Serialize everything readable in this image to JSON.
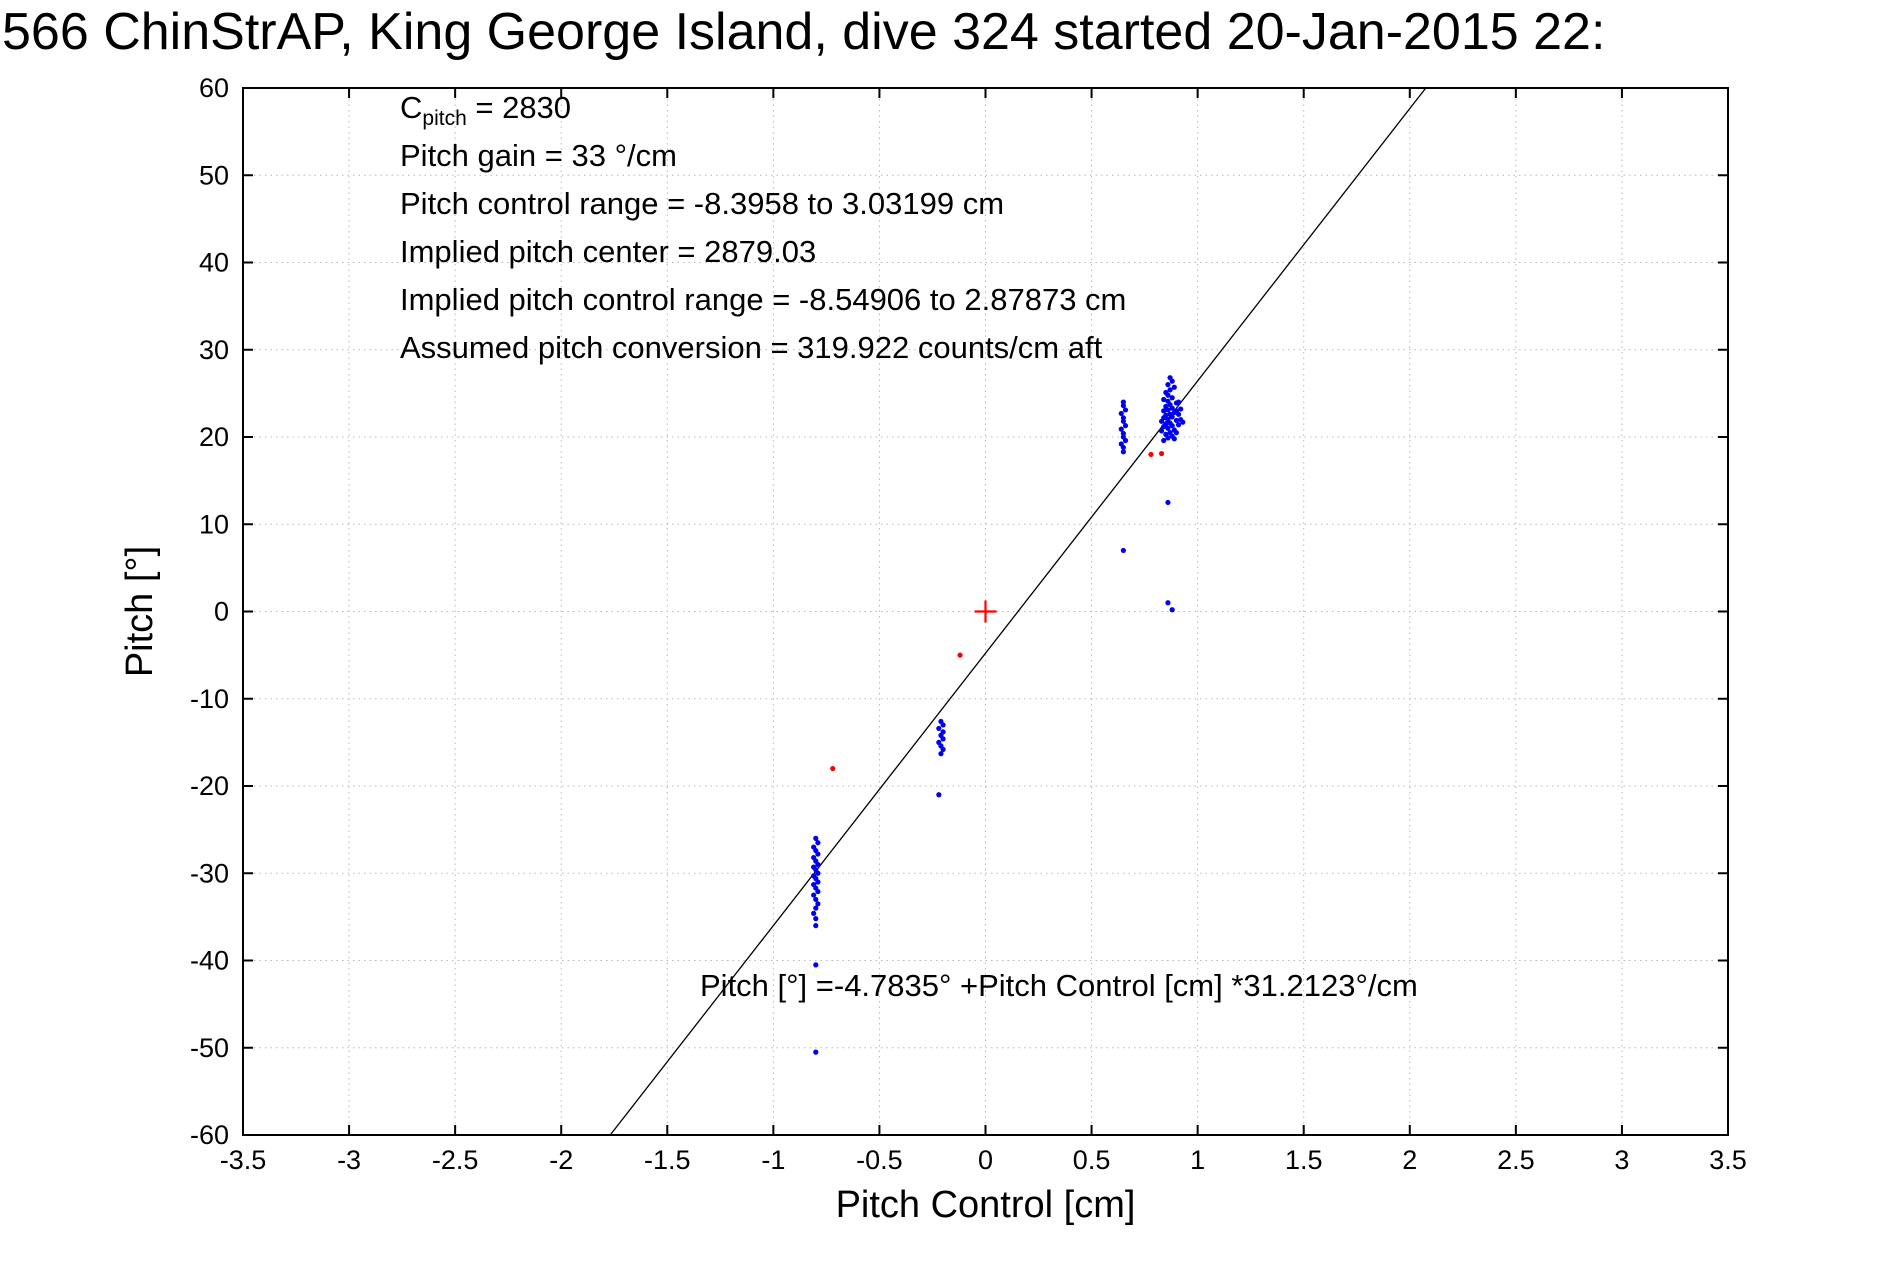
{
  "title": "566 ChinStrAP, King George Island, dive 324 started 20-Jan-2015 22:",
  "annotations": {
    "c_label": "C",
    "c_sub": "pitch",
    "c_value": " = 2830",
    "lines": [
      "Pitch gain = 33 °/cm",
      "Pitch control range = -8.3958 to 3.03199 cm",
      "Implied pitch center = 2879.03",
      "Implied pitch control range = -8.54906 to 2.87873 cm",
      "Assumed pitch conversion = 319.922 counts/cm aft"
    ],
    "fit_equation": "Pitch [°] =-4.7835° +Pitch Control [cm] *31.2123°/cm"
  },
  "chart_data": {
    "type": "scatter",
    "title": "566 ChinStrAP, King George Island, dive 324 started 20-Jan-2015 22:",
    "xlabel": "Pitch Control [cm]",
    "ylabel": "Pitch [°]",
    "xlim": [
      -3.5,
      3.5
    ],
    "ylim": [
      -60,
      60
    ],
    "grid": true,
    "legend": "none",
    "x_ticks": [
      -3.5,
      -3,
      -2.5,
      -2,
      -1.5,
      -1,
      -0.5,
      0,
      0.5,
      1,
      1.5,
      2,
      2.5,
      3,
      3.5
    ],
    "x_tick_labels": [
      "-3.5",
      "-3",
      "-2.5",
      "-2",
      "-1.5",
      "-1",
      "-0.5",
      "0",
      "0.5",
      "1",
      "1.5",
      "2",
      "2.5",
      "3",
      "3.5"
    ],
    "y_ticks": [
      -60,
      -50,
      -40,
      -30,
      -20,
      -10,
      0,
      10,
      20,
      30,
      40,
      50,
      60
    ],
    "y_tick_labels": [
      "-60",
      "-50",
      "-40",
      "-30",
      "-20",
      "-10",
      "0",
      "10",
      "20",
      "30",
      "40",
      "50",
      "60"
    ],
    "fit_line": {
      "slope": 31.2123,
      "intercept": -4.7835,
      "color": "#000000"
    },
    "series": [
      {
        "name": "pitch-samples",
        "color": "#0000ee",
        "marker": "dot",
        "points": [
          [
            0.65,
            18.3
          ],
          [
            0.65,
            18.8
          ],
          [
            0.64,
            19.2
          ],
          [
            0.66,
            19.6
          ],
          [
            0.65,
            20.0
          ],
          [
            0.65,
            20.4
          ],
          [
            0.64,
            20.9
          ],
          [
            0.66,
            21.3
          ],
          [
            0.65,
            21.8
          ],
          [
            0.65,
            22.2
          ],
          [
            0.64,
            22.7
          ],
          [
            0.66,
            23.1
          ],
          [
            0.65,
            23.6
          ],
          [
            0.65,
            24.0
          ],
          [
            0.84,
            19.6
          ],
          [
            0.86,
            19.9
          ],
          [
            0.88,
            20.1
          ],
          [
            0.85,
            20.3
          ],
          [
            0.87,
            20.5
          ],
          [
            0.83,
            20.7
          ],
          [
            0.89,
            20.8
          ],
          [
            0.86,
            21.0
          ],
          [
            0.84,
            21.2
          ],
          [
            0.88,
            21.3
          ],
          [
            0.85,
            21.5
          ],
          [
            0.87,
            21.6
          ],
          [
            0.83,
            21.8
          ],
          [
            0.9,
            21.9
          ],
          [
            0.86,
            22.0
          ],
          [
            0.84,
            22.2
          ],
          [
            0.88,
            22.3
          ],
          [
            0.85,
            22.5
          ],
          [
            0.87,
            22.6
          ],
          [
            0.89,
            22.8
          ],
          [
            0.84,
            23.0
          ],
          [
            0.86,
            23.1
          ],
          [
            0.88,
            23.3
          ],
          [
            0.85,
            23.5
          ],
          [
            0.87,
            23.7
          ],
          [
            0.9,
            23.9
          ],
          [
            0.86,
            24.1
          ],
          [
            0.84,
            24.3
          ],
          [
            0.88,
            24.5
          ],
          [
            0.86,
            24.8
          ],
          [
            0.85,
            25.1
          ],
          [
            0.87,
            25.4
          ],
          [
            0.89,
            25.7
          ],
          [
            0.86,
            26.0
          ],
          [
            0.88,
            26.4
          ],
          [
            0.87,
            26.8
          ],
          [
            0.91,
            21.4
          ],
          [
            0.92,
            22.0
          ],
          [
            0.93,
            21.7
          ],
          [
            0.91,
            22.6
          ],
          [
            0.92,
            23.2
          ],
          [
            0.9,
            20.5
          ],
          [
            0.91,
            24.0
          ],
          [
            0.89,
            19.8
          ],
          [
            0.9,
            23.0
          ],
          [
            0.86,
            12.5
          ],
          [
            0.65,
            7.0
          ],
          [
            0.86,
            1.0
          ],
          [
            0.88,
            0.2
          ],
          [
            -0.21,
            -12.6
          ],
          [
            -0.2,
            -13.0
          ],
          [
            -0.22,
            -13.4
          ],
          [
            -0.2,
            -13.8
          ],
          [
            -0.21,
            -14.2
          ],
          [
            -0.2,
            -14.6
          ],
          [
            -0.22,
            -15.0
          ],
          [
            -0.21,
            -15.4
          ],
          [
            -0.2,
            -15.8
          ],
          [
            -0.21,
            -16.3
          ],
          [
            -0.22,
            -21.0
          ],
          [
            -0.8,
            -26.0
          ],
          [
            -0.79,
            -26.5
          ],
          [
            -0.81,
            -27.0
          ],
          [
            -0.8,
            -27.4
          ],
          [
            -0.79,
            -27.8
          ],
          [
            -0.81,
            -28.2
          ],
          [
            -0.8,
            -28.6
          ],
          [
            -0.79,
            -29.0
          ],
          [
            -0.81,
            -29.3
          ],
          [
            -0.8,
            -29.6
          ],
          [
            -0.79,
            -30.0
          ],
          [
            -0.81,
            -30.3
          ],
          [
            -0.8,
            -30.6
          ],
          [
            -0.79,
            -31.0
          ],
          [
            -0.81,
            -31.3
          ],
          [
            -0.8,
            -31.7
          ],
          [
            -0.79,
            -32.1
          ],
          [
            -0.81,
            -32.5
          ],
          [
            -0.8,
            -33.0
          ],
          [
            -0.79,
            -33.5
          ],
          [
            -0.8,
            -34.0
          ],
          [
            -0.81,
            -34.6
          ],
          [
            -0.8,
            -35.2
          ],
          [
            -0.8,
            -36.0
          ],
          [
            -0.8,
            -40.5
          ],
          [
            -0.8,
            -50.5
          ]
        ]
      },
      {
        "name": "flagged-samples",
        "color": "#ff0000",
        "marker": "dot",
        "points": [
          [
            -0.12,
            -5.0
          ],
          [
            -0.72,
            -18.0
          ],
          [
            0.78,
            18.0
          ],
          [
            0.83,
            18.1
          ]
        ]
      },
      {
        "name": "pitch-center-marker",
        "color": "#ff0000",
        "marker": "plus",
        "points": [
          [
            0,
            0
          ]
        ]
      }
    ]
  },
  "colors": {
    "marker_blue": "#0000ee",
    "marker_red": "#ff0000",
    "axis": "#000000",
    "grid": "#b9b9b9",
    "background": "#ffffff"
  }
}
